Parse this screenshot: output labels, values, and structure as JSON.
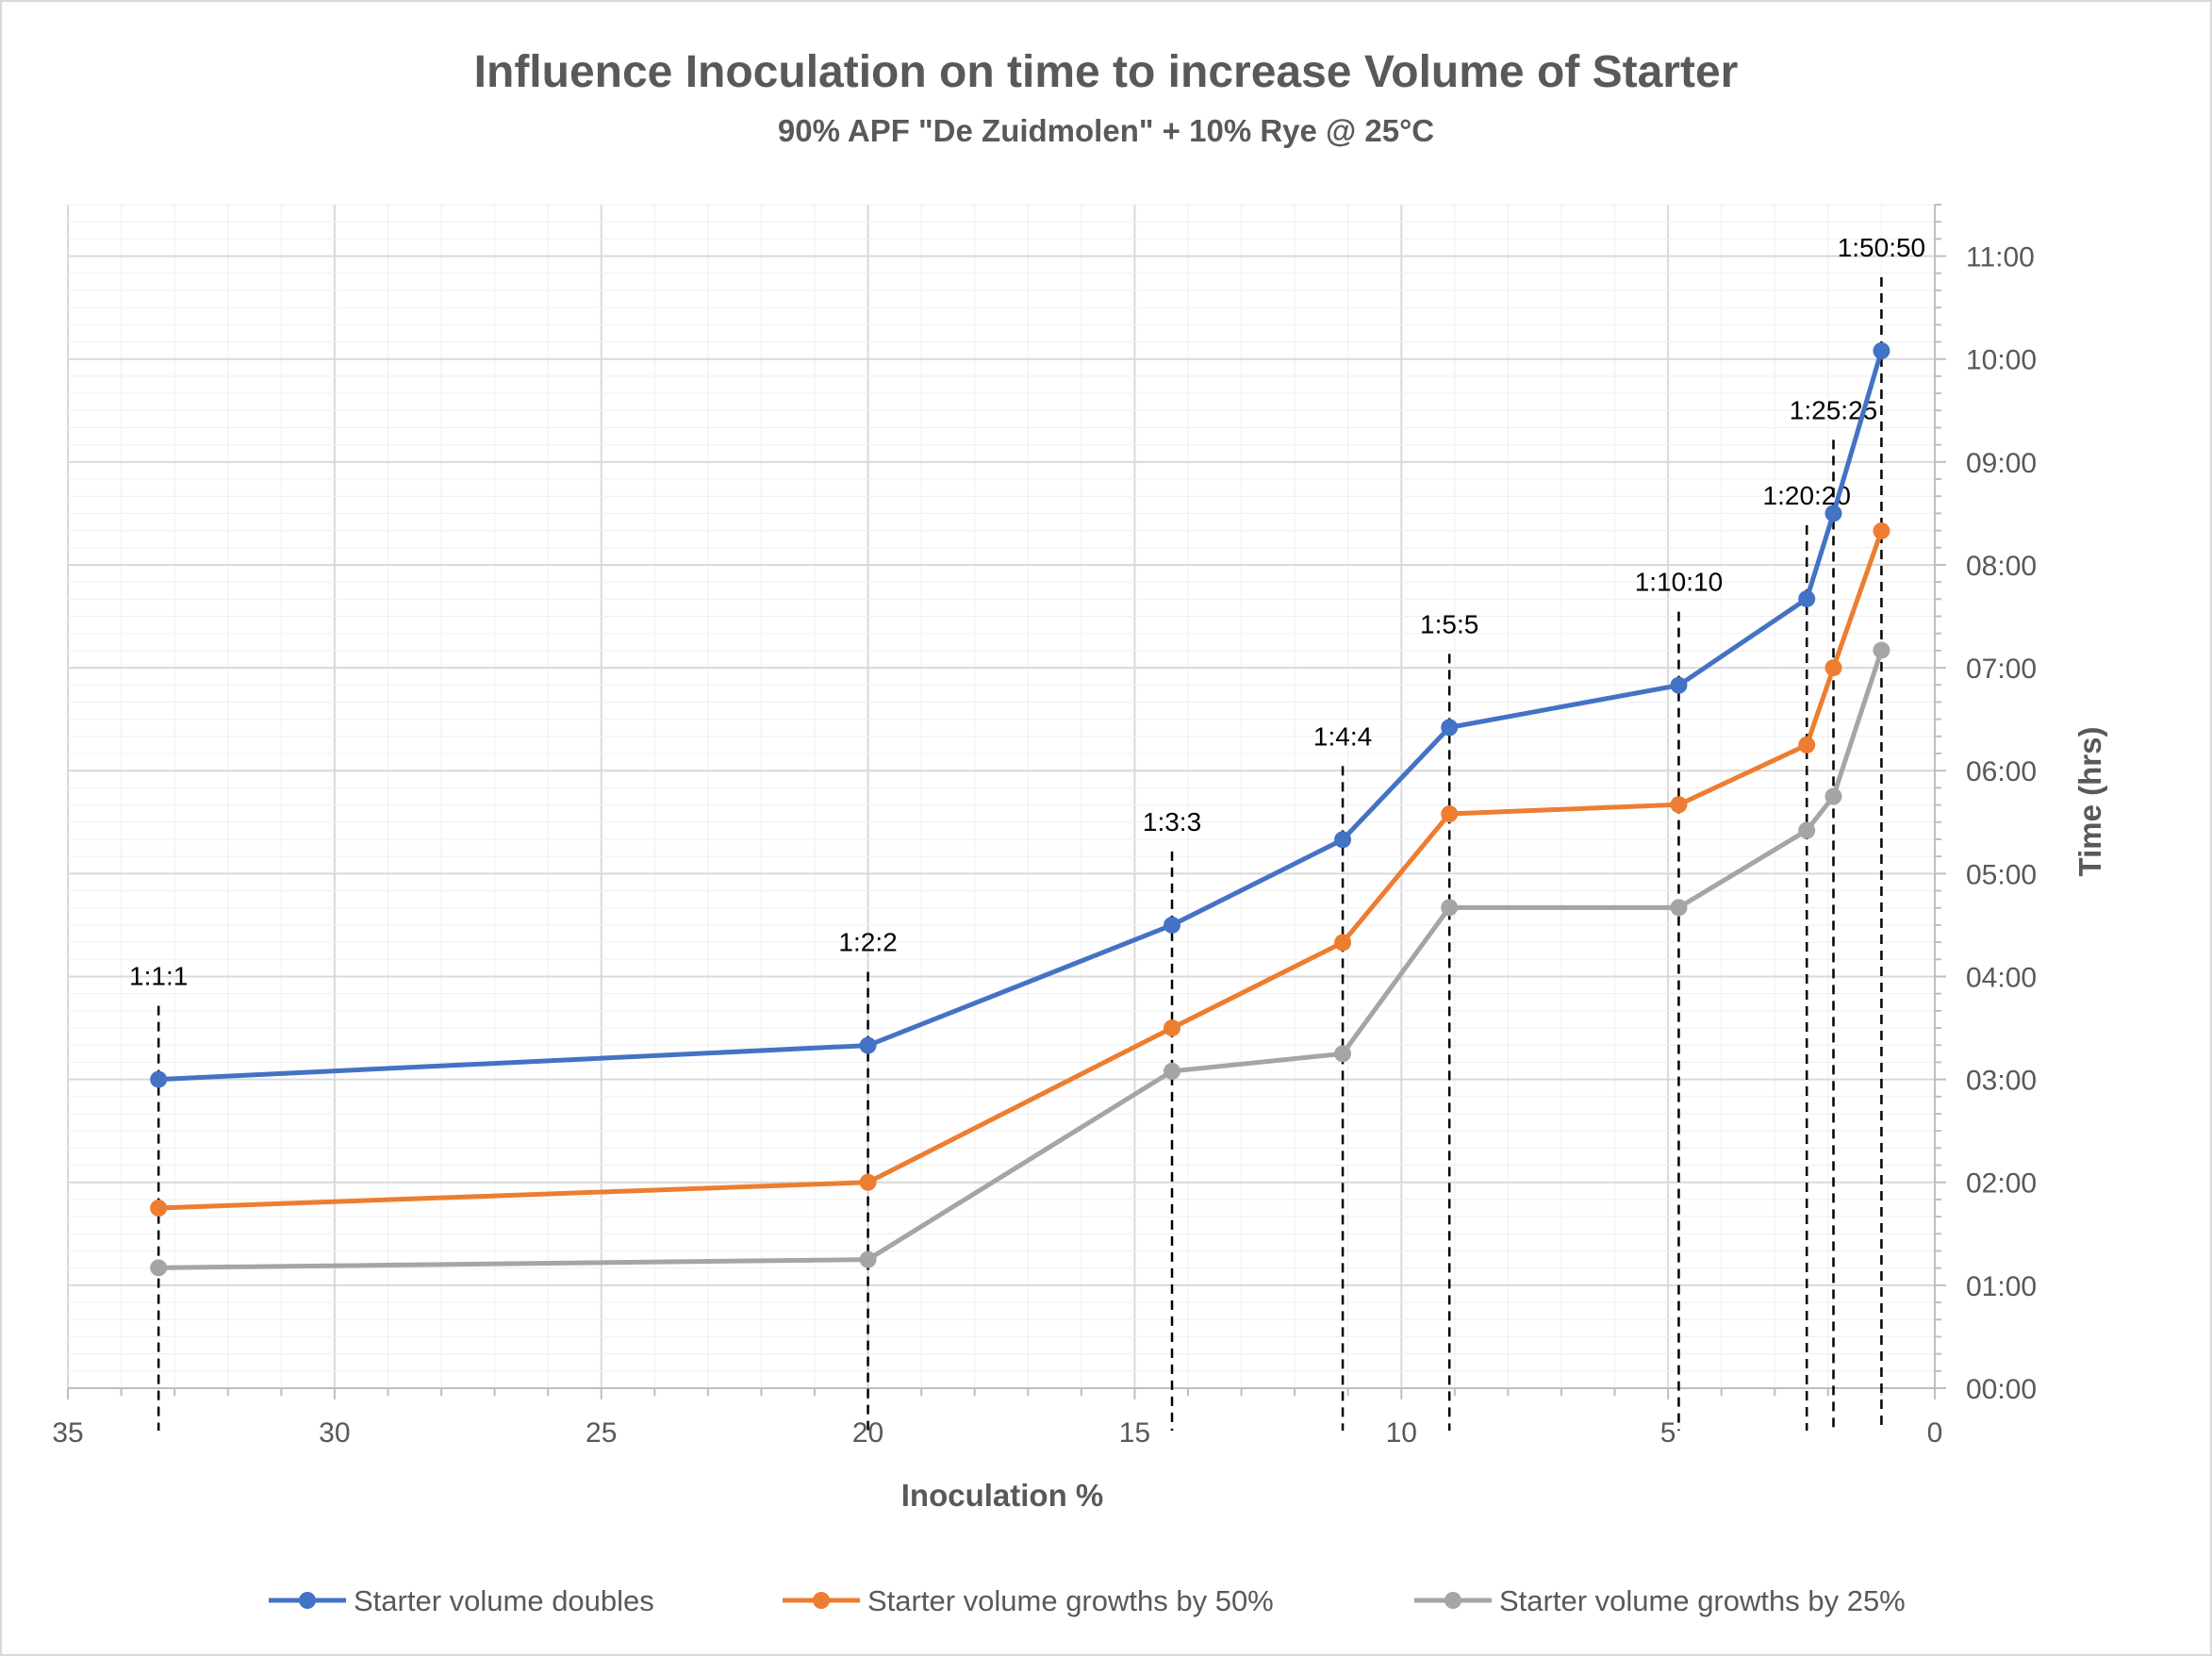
{
  "chart_data": {
    "type": "line",
    "title": "Influence Inoculation on time to increase Volume of Starter",
    "subtitle": "90% APF \"De Zuidmolen\" + 10% Rye @ 25°C",
    "xlabel": "Inoculation %",
    "ylabel": "Time (hrs)",
    "xlim": [
      35,
      0
    ],
    "x_reversed": true,
    "ylim": [
      0,
      11.5
    ],
    "x_ticks": [
      35,
      30,
      25,
      20,
      15,
      10,
      5,
      0
    ],
    "x_tick_labels": [
      "35",
      "30",
      "25",
      "20",
      "15",
      "10",
      "5",
      "0"
    ],
    "y_ticks": [
      0,
      1,
      2,
      3,
      4,
      5,
      6,
      7,
      8,
      9,
      10,
      11
    ],
    "y_tick_labels": [
      "00:00",
      "01:00",
      "02:00",
      "03:00",
      "04:00",
      "05:00",
      "06:00",
      "07:00",
      "08:00",
      "09:00",
      "10:00",
      "11:00"
    ],
    "y_axis_position": "right",
    "grid": true,
    "legend_position": "bottom",
    "x": [
      33.3,
      20,
      14.3,
      11.1,
      9.1,
      4.8,
      2.4,
      1.9,
      1.0
    ],
    "ratios": [
      {
        "label": "1:1:1",
        "x": 33.3
      },
      {
        "label": "1:2:2",
        "x": 20
      },
      {
        "label": "1:3:3",
        "x": 14.3
      },
      {
        "label": "1:4:4",
        "x": 11.1
      },
      {
        "label": "1:5:5",
        "x": 9.1
      },
      {
        "label": "1:10:10",
        "x": 4.8
      },
      {
        "label": "1:20:20",
        "x": 2.4
      },
      {
        "label": "1:25:25",
        "x": 1.9
      },
      {
        "label": "1:50:50",
        "x": 1.0
      }
    ],
    "series": [
      {
        "name": "Starter volume doubles",
        "color": "#4472C4",
        "values": [
          3.0,
          3.33,
          4.5,
          5.33,
          6.42,
          6.83,
          7.67,
          8.5,
          10.08
        ]
      },
      {
        "name": "Starter volume growths by 50%",
        "color": "#ED7D31",
        "values": [
          1.75,
          2.0,
          3.5,
          4.33,
          5.58,
          5.67,
          6.25,
          7.0,
          8.33
        ]
      },
      {
        "name": "Starter volume growths by 25%",
        "color": "#A5A5A5",
        "values": [
          1.17,
          1.25,
          3.08,
          3.25,
          4.67,
          4.67,
          5.42,
          5.75,
          7.17
        ]
      }
    ]
  }
}
